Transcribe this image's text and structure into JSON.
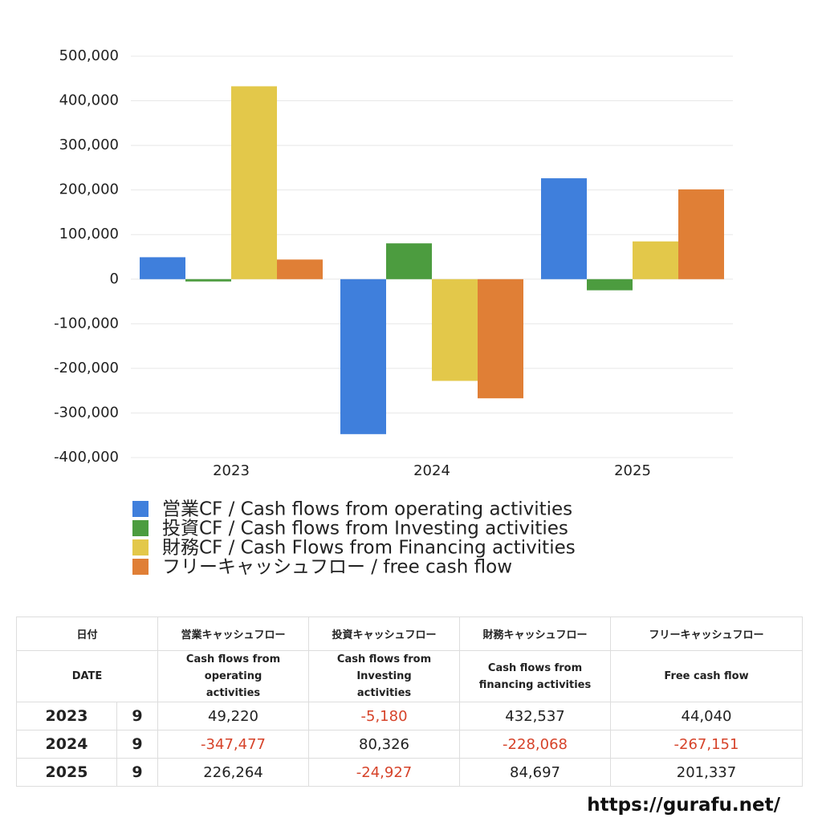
{
  "chart_data": {
    "type": "bar",
    "categories": [
      "2023",
      "2024",
      "2025"
    ],
    "series": [
      {
        "name": "営業CF / Cash flows from operating activities",
        "color": "#3f7fdc",
        "values": [
          49220,
          -347477,
          226264
        ]
      },
      {
        "name": "投資CF / Cash flows from Investing activities",
        "color": "#4c9c3f",
        "values": [
          -5180,
          80326,
          -24927
        ]
      },
      {
        "name": "財務CF / Cash Flows from Financing activities",
        "color": "#e3c84a",
        "values": [
          432537,
          -228068,
          84697
        ]
      },
      {
        "name": "フリーキャッシュフロー / free cash flow",
        "color": "#e07f36",
        "values": [
          44040,
          -267151,
          201337
        ]
      }
    ],
    "ylim": [
      -400000,
      500000
    ],
    "yticks": [
      {
        "value": -400000,
        "label": "-400,000"
      },
      {
        "value": -300000,
        "label": "-300,000"
      },
      {
        "value": -200000,
        "label": "-200,000"
      },
      {
        "value": -100000,
        "label": "-100,000"
      },
      0,
      {
        "value": 100000,
        "label": "100,000"
      },
      {
        "value": 200000,
        "label": "200,000"
      },
      {
        "value": 300000,
        "label": "300,000"
      },
      {
        "value": 400000,
        "label": "400,000"
      },
      {
        "value": 500000,
        "label": "500,000"
      }
    ],
    "grid": true
  },
  "table": {
    "header": [
      "日付",
      "営業キャッシュフロー",
      "投資キャッシュフロー",
      "財務キャッシュフロー",
      "フリーキャッシュフロー"
    ],
    "subheader": [
      "DATE",
      "Cash flows from operating activities",
      "Cash flows from Investing activities",
      "Cash flows from financing activities",
      "Free cash flow"
    ],
    "rows": [
      [
        "2023",
        "9",
        "49,220",
        "-5,180",
        "432,537",
        "44,040"
      ],
      [
        "2024",
        "9",
        "-347,477",
        "80,326",
        "-228,068",
        "-267,151"
      ],
      [
        "2025",
        "9",
        "226,264",
        "-24,927",
        "84,697",
        "201,337"
      ]
    ]
  },
  "footer": "https://gurafu.net/"
}
